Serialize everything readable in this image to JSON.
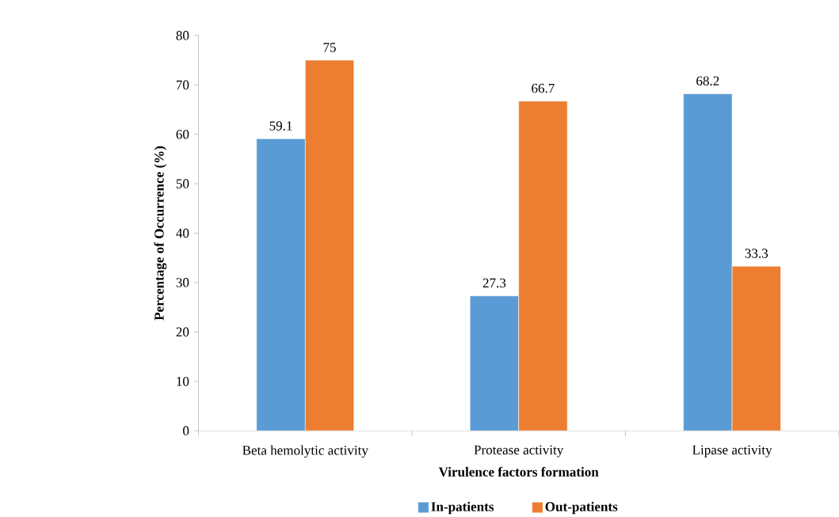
{
  "chart_data": {
    "type": "bar",
    "categories": [
      "Beta hemolytic activity",
      "Protease activity",
      "Lipase activity"
    ],
    "series": [
      {
        "name": "In-patients",
        "color": "#5b9bd5",
        "values": [
          59.1,
          27.3,
          68.2
        ]
      },
      {
        "name": "Out-patients",
        "color": "#ed7d31",
        "values": [
          75,
          66.7,
          33.3
        ]
      }
    ],
    "xlabel": "Virulence factors formation",
    "ylabel": "Percentage of Occurrence (%)",
    "ylim": [
      0,
      80
    ],
    "yticks": [
      0,
      10,
      20,
      30,
      40,
      50,
      60,
      70,
      80
    ],
    "data_labels": true,
    "legend": "bottom",
    "grid": false
  }
}
